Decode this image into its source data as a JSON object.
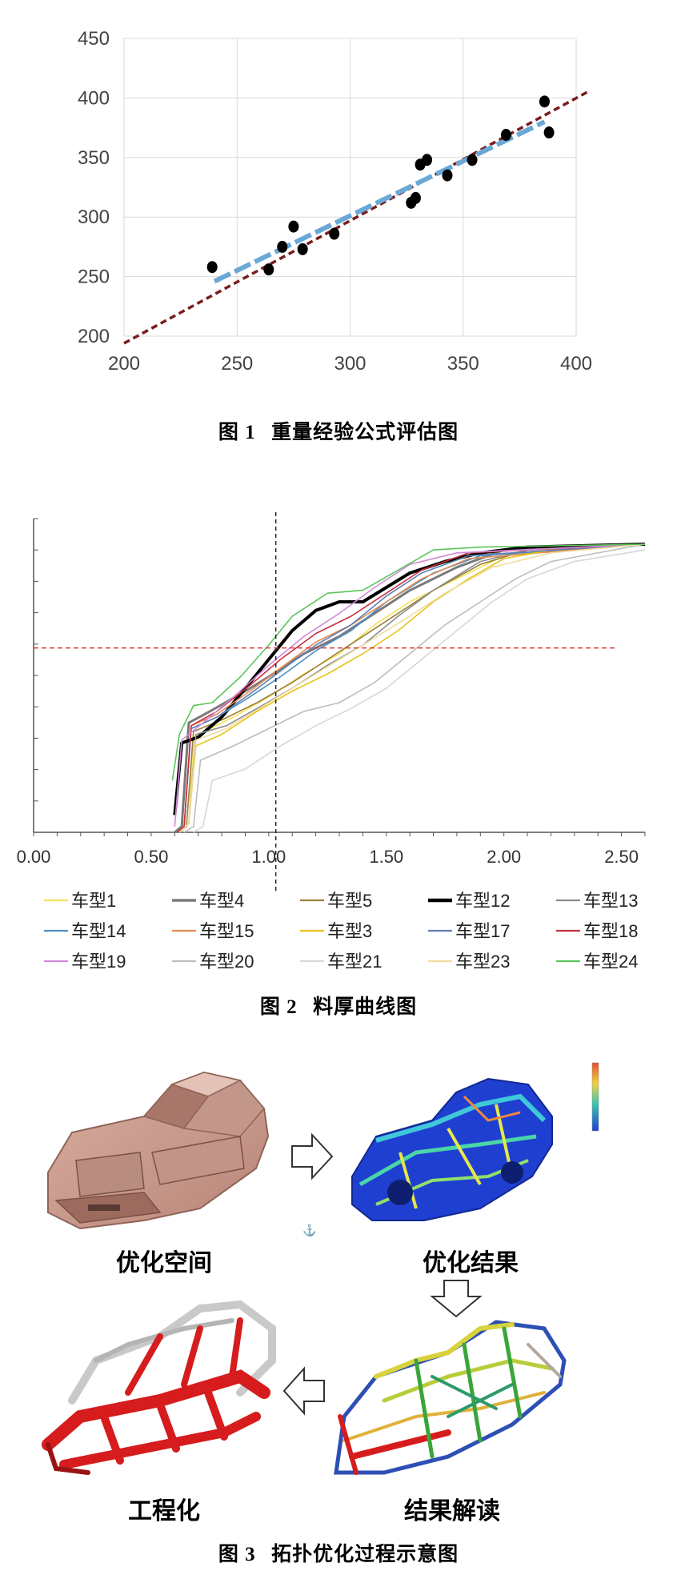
{
  "figure1": {
    "caption_num": "图 1",
    "caption_text": "重量经验公式评估图",
    "chart_data": {
      "type": "scatter",
      "title": "",
      "xlabel": "",
      "ylabel": "",
      "xlim": [
        200,
        400
      ],
      "ylim": [
        200,
        450
      ],
      "xticks": [
        200,
        250,
        300,
        350,
        400
      ],
      "yticks": [
        200,
        250,
        300,
        350,
        400,
        450
      ],
      "grid": true,
      "points": [
        [
          239,
          258
        ],
        [
          264,
          256
        ],
        [
          270,
          275
        ],
        [
          275,
          292
        ],
        [
          279,
          273
        ],
        [
          293,
          286
        ],
        [
          327,
          312
        ],
        [
          329,
          316
        ],
        [
          331,
          344
        ],
        [
          334,
          348
        ],
        [
          343,
          335
        ],
        [
          354,
          348
        ],
        [
          369,
          369
        ],
        [
          386,
          397
        ],
        [
          388,
          371
        ]
      ],
      "trend_lines": [
        {
          "style": "dashed-darkred",
          "x": [
            200,
            405
          ],
          "y": [
            194,
            405
          ]
        },
        {
          "style": "dashed-lightblue",
          "x": [
            240,
            386
          ],
          "y": [
            246,
            380
          ]
        }
      ],
      "colors": {
        "points": "#000000",
        "trend_main": "#7a1d1d",
        "trend_fit": "#6aa8d6",
        "grid": "#d9d9d9"
      }
    }
  },
  "figure2": {
    "caption_num": "图 2",
    "caption_text": "料厚曲线图",
    "chart_data": {
      "type": "line",
      "title": "",
      "xlabel": "",
      "ylabel": "",
      "xlim": [
        0,
        2.6
      ],
      "ylim": [
        0,
        1
      ],
      "xticks": [
        "0.00",
        "0.50",
        "1.00",
        "1.50",
        "2.00",
        "2.50"
      ],
      "xtick_values": [
        0,
        0.5,
        1.0,
        1.5,
        2.0,
        2.5
      ],
      "reference_lines": {
        "vertical_x": 1.03,
        "horizontal_y": 0.64
      },
      "legend_position": "bottom",
      "series": [
        {
          "name": "车型1",
          "color": "#f2e25c",
          "points": [
            [
              0.62,
              0
            ],
            [
              0.66,
              0.03
            ],
            [
              0.68,
              0.33
            ],
            [
              0.75,
              0.36
            ],
            [
              0.85,
              0.4
            ],
            [
              1.0,
              0.47
            ],
            [
              1.15,
              0.55
            ],
            [
              1.3,
              0.62
            ],
            [
              1.45,
              0.72
            ],
            [
              1.6,
              0.8
            ],
            [
              1.8,
              0.88
            ],
            [
              2.0,
              0.96
            ],
            [
              2.3,
              0.99
            ],
            [
              2.6,
              1.0
            ]
          ]
        },
        {
          "name": "车型4",
          "color": "#7a7a7a",
          "width": 3,
          "points": [
            [
              0.6,
              0
            ],
            [
              0.63,
              0.02
            ],
            [
              0.66,
              0.38
            ],
            [
              0.75,
              0.42
            ],
            [
              0.9,
              0.49
            ],
            [
              1.0,
              0.54
            ],
            [
              1.15,
              0.62
            ],
            [
              1.3,
              0.68
            ],
            [
              1.45,
              0.76
            ],
            [
              1.6,
              0.84
            ],
            [
              1.8,
              0.92
            ],
            [
              2.0,
              0.98
            ],
            [
              2.6,
              1.0
            ]
          ]
        },
        {
          "name": "车型5",
          "color": "#9c7f3a",
          "points": [
            [
              0.62,
              0
            ],
            [
              0.65,
              0.02
            ],
            [
              0.68,
              0.35
            ],
            [
              0.8,
              0.39
            ],
            [
              0.95,
              0.45
            ],
            [
              1.1,
              0.52
            ],
            [
              1.25,
              0.6
            ],
            [
              1.4,
              0.68
            ],
            [
              1.55,
              0.76
            ],
            [
              1.7,
              0.84
            ],
            [
              1.9,
              0.93
            ],
            [
              2.1,
              0.98
            ],
            [
              2.6,
              1.0
            ]
          ]
        },
        {
          "name": "车型12",
          "color": "#000000",
          "width": 4,
          "points": [
            [
              0.6,
              0.06
            ],
            [
              0.63,
              0.31
            ],
            [
              0.7,
              0.33
            ],
            [
              0.8,
              0.4
            ],
            [
              0.9,
              0.5
            ],
            [
              1.0,
              0.6
            ],
            [
              1.1,
              0.7
            ],
            [
              1.2,
              0.77
            ],
            [
              1.3,
              0.8
            ],
            [
              1.4,
              0.8
            ],
            [
              1.5,
              0.85
            ],
            [
              1.6,
              0.9
            ],
            [
              1.75,
              0.94
            ],
            [
              1.9,
              0.97
            ],
            [
              2.1,
              0.99
            ],
            [
              2.6,
              1.0
            ]
          ]
        },
        {
          "name": "车型13",
          "color": "#8c8c8c",
          "points": [
            [
              0.62,
              0
            ],
            [
              0.66,
              0.03
            ],
            [
              0.69,
              0.34
            ],
            [
              0.82,
              0.37
            ],
            [
              0.95,
              0.43
            ],
            [
              1.1,
              0.5
            ],
            [
              1.25,
              0.58
            ],
            [
              1.4,
              0.65
            ],
            [
              1.55,
              0.75
            ],
            [
              1.7,
              0.84
            ],
            [
              1.9,
              0.94
            ],
            [
              2.1,
              0.98
            ],
            [
              2.6,
              1.0
            ]
          ]
        },
        {
          "name": "车型14",
          "color": "#4e8fc4",
          "points": [
            [
              0.61,
              0
            ],
            [
              0.64,
              0.02
            ],
            [
              0.67,
              0.36
            ],
            [
              0.78,
              0.4
            ],
            [
              0.9,
              0.46
            ],
            [
              1.05,
              0.54
            ],
            [
              1.2,
              0.63
            ],
            [
              1.35,
              0.7
            ],
            [
              1.5,
              0.8
            ],
            [
              1.7,
              0.9
            ],
            [
              1.9,
              0.96
            ],
            [
              2.6,
              1.0
            ]
          ]
        },
        {
          "name": "车型15",
          "color": "#e58b52",
          "points": [
            [
              0.61,
              0
            ],
            [
              0.64,
              0.02
            ],
            [
              0.67,
              0.37
            ],
            [
              0.78,
              0.41
            ],
            [
              0.92,
              0.49
            ],
            [
              1.05,
              0.57
            ],
            [
              1.2,
              0.66
            ],
            [
              1.35,
              0.72
            ],
            [
              1.5,
              0.8
            ],
            [
              1.65,
              0.88
            ],
            [
              1.85,
              0.95
            ],
            [
              2.6,
              1.0
            ]
          ]
        },
        {
          "name": "车型3",
          "color": "#e8c21a",
          "points": [
            [
              0.62,
              0
            ],
            [
              0.66,
              0.03
            ],
            [
              0.69,
              0.3
            ],
            [
              0.8,
              0.34
            ],
            [
              0.95,
              0.42
            ],
            [
              1.1,
              0.49
            ],
            [
              1.25,
              0.55
            ],
            [
              1.4,
              0.62
            ],
            [
              1.55,
              0.7
            ],
            [
              1.7,
              0.8
            ],
            [
              1.85,
              0.88
            ],
            [
              2.0,
              0.95
            ],
            [
              2.2,
              0.98
            ],
            [
              2.6,
              1.0
            ]
          ]
        },
        {
          "name": "车型17",
          "color": "#5d7fb3",
          "points": [
            [
              0.61,
              0
            ],
            [
              0.64,
              0.02
            ],
            [
              0.67,
              0.36
            ],
            [
              0.78,
              0.4
            ],
            [
              0.92,
              0.48
            ],
            [
              1.05,
              0.56
            ],
            [
              1.2,
              0.65
            ],
            [
              1.35,
              0.72
            ],
            [
              1.5,
              0.82
            ],
            [
              1.65,
              0.9
            ],
            [
              1.85,
              0.96
            ],
            [
              2.6,
              1.0
            ]
          ]
        },
        {
          "name": "车型18",
          "color": "#c8303f",
          "points": [
            [
              0.61,
              0
            ],
            [
              0.64,
              0.02
            ],
            [
              0.67,
              0.37
            ],
            [
              0.78,
              0.42
            ],
            [
              0.92,
              0.51
            ],
            [
              1.05,
              0.6
            ],
            [
              1.2,
              0.69
            ],
            [
              1.35,
              0.75
            ],
            [
              1.5,
              0.83
            ],
            [
              1.65,
              0.91
            ],
            [
              1.85,
              0.97
            ],
            [
              2.6,
              1.0
            ]
          ]
        },
        {
          "name": "车型19",
          "color": "#d28ad8",
          "points": [
            [
              0.6,
              0.02
            ],
            [
              0.63,
              0.32
            ],
            [
              0.72,
              0.38
            ],
            [
              0.85,
              0.47
            ],
            [
              1.0,
              0.58
            ],
            [
              1.15,
              0.68
            ],
            [
              1.3,
              0.76
            ],
            [
              1.45,
              0.85
            ],
            [
              1.6,
              0.93
            ],
            [
              1.8,
              0.97
            ],
            [
              2.6,
              1.0
            ]
          ]
        },
        {
          "name": "车型20",
          "color": "#bdbdbd",
          "points": [
            [
              0.64,
              0
            ],
            [
              0.68,
              0.02
            ],
            [
              0.71,
              0.25
            ],
            [
              0.85,
              0.3
            ],
            [
              1.0,
              0.36
            ],
            [
              1.15,
              0.42
            ],
            [
              1.3,
              0.45
            ],
            [
              1.45,
              0.52
            ],
            [
              1.6,
              0.62
            ],
            [
              1.75,
              0.72
            ],
            [
              1.9,
              0.8
            ],
            [
              2.05,
              0.88
            ],
            [
              2.2,
              0.94
            ],
            [
              2.6,
              1.0
            ]
          ]
        },
        {
          "name": "车型21",
          "color": "#d7d7d7",
          "points": [
            [
              0.68,
              0
            ],
            [
              0.72,
              0.02
            ],
            [
              0.76,
              0.18
            ],
            [
              0.9,
              0.22
            ],
            [
              1.05,
              0.3
            ],
            [
              1.2,
              0.37
            ],
            [
              1.35,
              0.43
            ],
            [
              1.5,
              0.5
            ],
            [
              1.65,
              0.6
            ],
            [
              1.8,
              0.7
            ],
            [
              1.95,
              0.8
            ],
            [
              2.1,
              0.88
            ],
            [
              2.3,
              0.94
            ],
            [
              2.6,
              0.98
            ]
          ]
        },
        {
          "name": "车型23",
          "color": "#f0dca0",
          "points": [
            [
              0.62,
              0
            ],
            [
              0.66,
              0.03
            ],
            [
              0.69,
              0.32
            ],
            [
              0.82,
              0.36
            ],
            [
              0.98,
              0.44
            ],
            [
              1.12,
              0.51
            ],
            [
              1.28,
              0.59
            ],
            [
              1.42,
              0.66
            ],
            [
              1.58,
              0.74
            ],
            [
              1.75,
              0.83
            ],
            [
              1.95,
              0.92
            ],
            [
              2.2,
              0.97
            ],
            [
              2.6,
              1.0
            ]
          ]
        },
        {
          "name": "车型24",
          "color": "#5cc55a",
          "points": [
            [
              0.59,
              0.18
            ],
            [
              0.62,
              0.34
            ],
            [
              0.68,
              0.44
            ],
            [
              0.76,
              0.45
            ],
            [
              0.88,
              0.54
            ],
            [
              1.0,
              0.65
            ],
            [
              1.1,
              0.75
            ],
            [
              1.25,
              0.83
            ],
            [
              1.4,
              0.84
            ],
            [
              1.55,
              0.91
            ],
            [
              1.7,
              0.98
            ],
            [
              1.9,
              0.99
            ],
            [
              2.6,
              1.0
            ]
          ]
        }
      ]
    }
  },
  "figure3": {
    "caption_num": "图 3",
    "caption_text": "拓扑优化过程示意图",
    "stages": {
      "top_left": "优化空间",
      "top_right": "优化结果",
      "bottom_right": "结果解读",
      "bottom_left": "工程化"
    },
    "colors": {
      "body_pink": "#c79a8e",
      "result_blue": "#1f3fd1",
      "frame_red": "#d61c1c",
      "frame_grey": "#c9c9c9"
    }
  }
}
